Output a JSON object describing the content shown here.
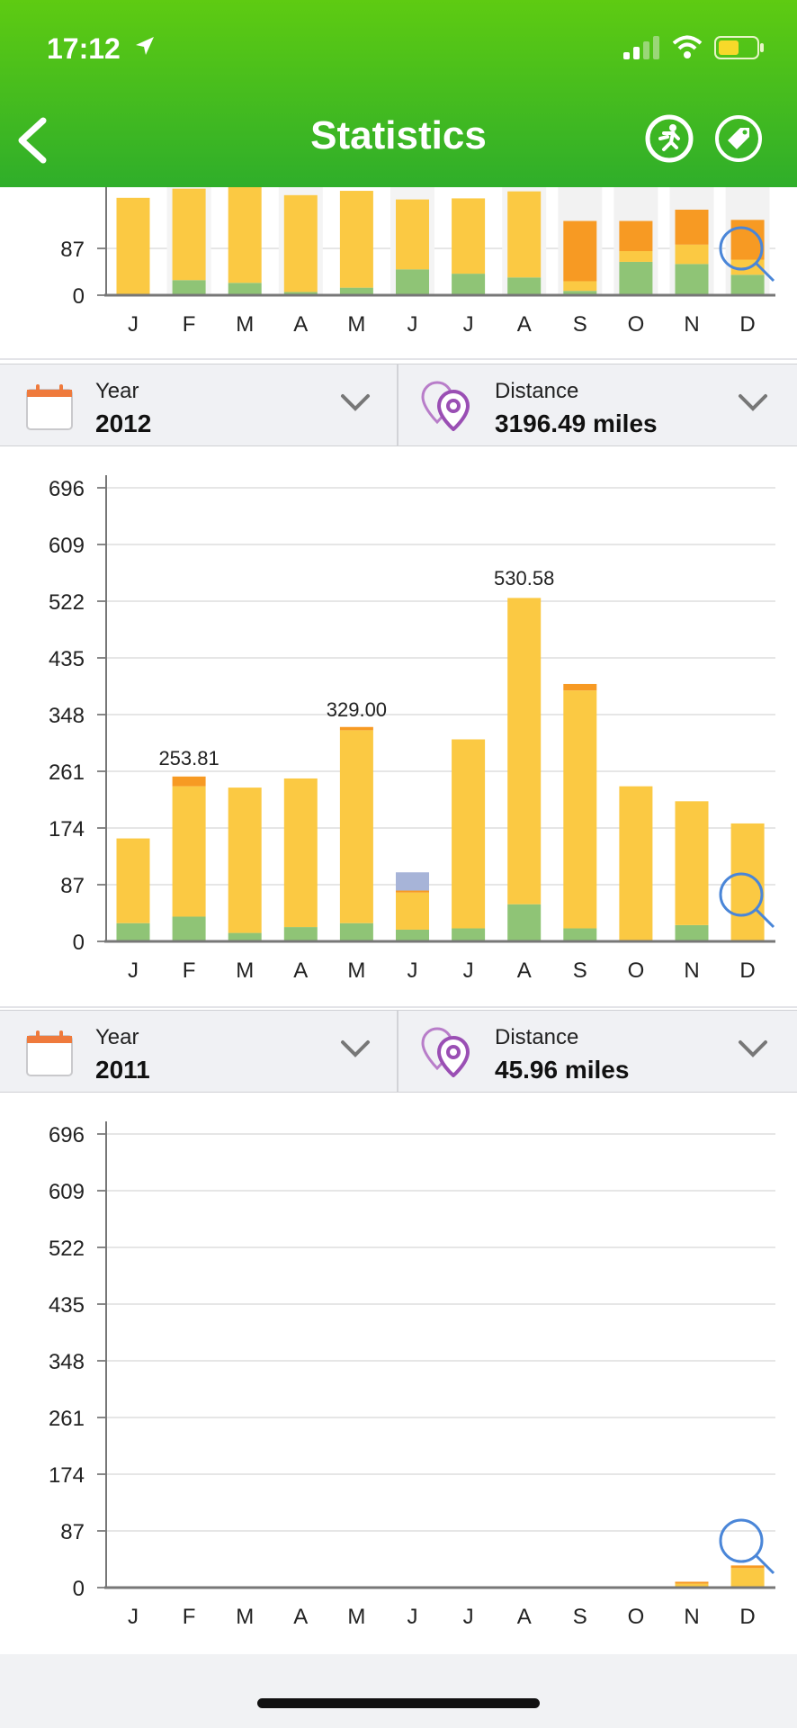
{
  "status_bar": {
    "time": "17:12"
  },
  "header": {
    "title": "Statistics"
  },
  "month_labels": [
    "J",
    "F",
    "M",
    "A",
    "M",
    "J",
    "J",
    "A",
    "S",
    "O",
    "N",
    "D"
  ],
  "colors": {
    "yellow": "#fbc943",
    "green": "#8fc476",
    "orange": "#f79a23",
    "blue": "#a7b4d8",
    "header_green": "#3cb82a"
  },
  "selectors": [
    {
      "period_label": "Year",
      "period_value": "2012",
      "metric_label": "Distance",
      "metric_value": "3196.49 miles"
    },
    {
      "period_label": "Year",
      "period_value": "2011",
      "metric_label": "Distance",
      "metric_value": "45.96 miles"
    }
  ],
  "chart_data": [
    {
      "type": "bar",
      "partial": "top chart cropped under header",
      "categories": [
        "J",
        "F",
        "M",
        "A",
        "M",
        "J",
        "J",
        "A",
        "S",
        "O",
        "N",
        "D"
      ],
      "ylim": [
        0,
        174
      ],
      "yticks": [
        "87",
        "0"
      ],
      "series": [
        {
          "color": "green",
          "values": [
            1,
            28,
            23,
            6,
            14,
            48,
            40,
            33,
            8,
            62,
            58,
            38
          ]
        },
        {
          "color": "yellow",
          "values": [
            180,
            170,
            180,
            180,
            180,
            130,
            140,
            160,
            18,
            20,
            36,
            28
          ]
        },
        {
          "color": "orange",
          "values": [
            0,
            0,
            0,
            0,
            0,
            0,
            0,
            0,
            112,
            56,
            65,
            74
          ]
        }
      ],
      "background_bars": [
        0,
        0,
        0,
        0,
        0,
        110,
        0,
        0,
        200,
        200,
        200,
        200
      ],
      "data_labels": []
    },
    {
      "type": "bar",
      "categories": [
        "J",
        "F",
        "M",
        "A",
        "M",
        "J",
        "J",
        "A",
        "S",
        "O",
        "N",
        "D"
      ],
      "ylim": [
        0,
        696
      ],
      "yticks": [
        "696",
        "609",
        "522",
        "435",
        "348",
        "261",
        "174",
        "87",
        "0"
      ],
      "series": [
        {
          "color": "green",
          "values": [
            28,
            38,
            13,
            22,
            28,
            18,
            20,
            57,
            20,
            0,
            25,
            0
          ]
        },
        {
          "color": "yellow",
          "values": [
            130,
            200,
            223,
            228,
            296,
            57,
            290,
            470,
            365,
            238,
            190,
            181
          ]
        },
        {
          "color": "orange",
          "values": [
            0,
            15,
            0,
            0,
            5,
            3,
            0,
            0,
            10,
            0,
            0,
            0
          ]
        },
        {
          "color": "blue",
          "values": [
            0,
            0,
            0,
            0,
            0,
            28,
            0,
            0,
            0,
            0,
            0,
            0
          ]
        }
      ],
      "data_labels": [
        {
          "index": 1,
          "text": "253.81",
          "value": 253.81
        },
        {
          "index": 4,
          "text": "329.00",
          "value": 329.0
        },
        {
          "index": 7,
          "text": "530.58",
          "value": 530.58
        }
      ]
    },
    {
      "type": "bar",
      "categories": [
        "J",
        "F",
        "M",
        "A",
        "M",
        "J",
        "J",
        "A",
        "S",
        "O",
        "N",
        "D"
      ],
      "ylim": [
        0,
        696
      ],
      "yticks": [
        "696",
        "609",
        "522",
        "435",
        "348",
        "261",
        "174",
        "87",
        "0"
      ],
      "series": [
        {
          "color": "yellow",
          "values": [
            0,
            0,
            0,
            0,
            0,
            0,
            0,
            0,
            0,
            0,
            6,
            30
          ]
        },
        {
          "color": "orange",
          "values": [
            0,
            0,
            0,
            0,
            0,
            0,
            0,
            0,
            0,
            0,
            3,
            4
          ]
        }
      ],
      "data_labels": []
    }
  ]
}
